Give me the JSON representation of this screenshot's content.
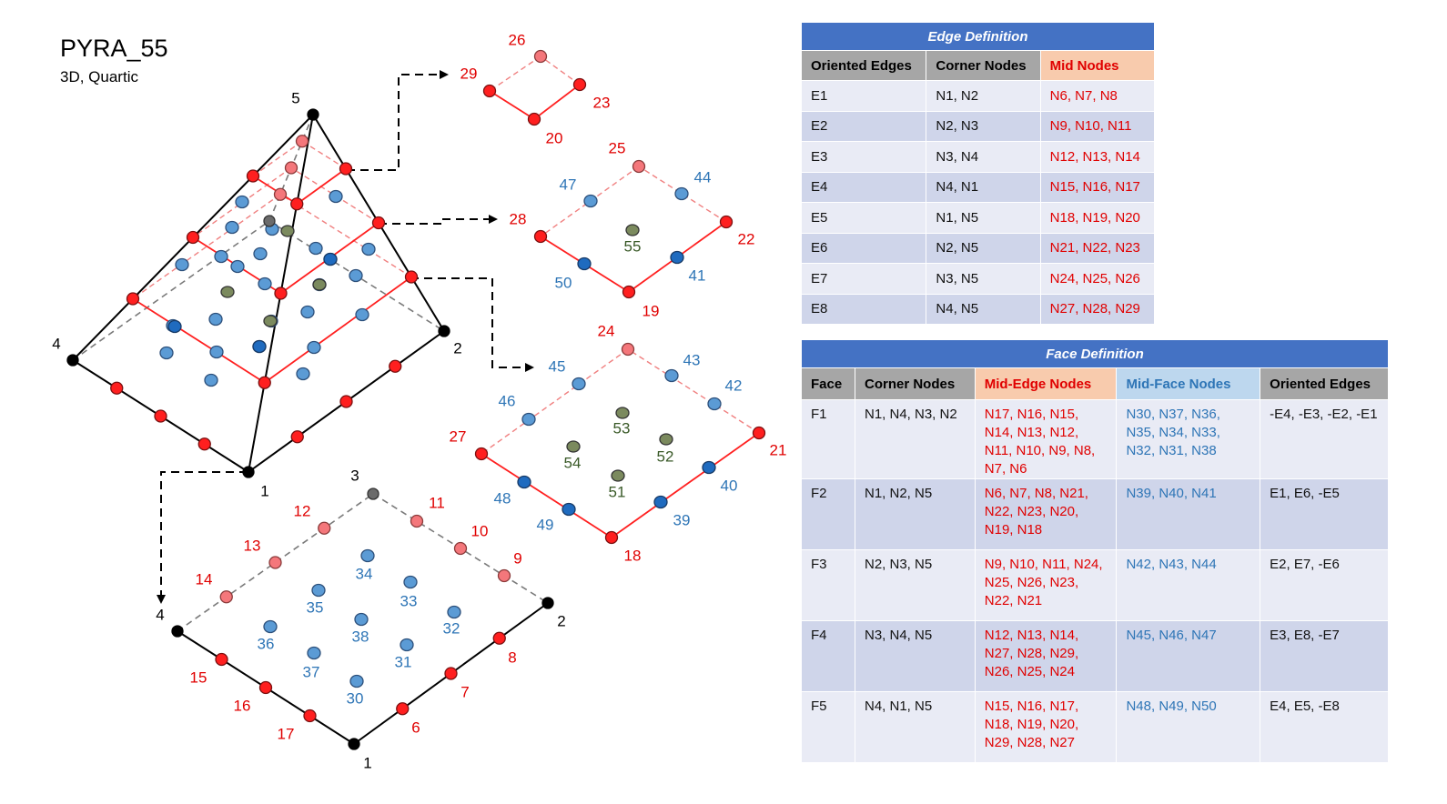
{
  "header": {
    "title": "PYRA_55",
    "subtitle": "3D, Quartic"
  },
  "colors": {
    "corner": "#000000",
    "mid_edge": "#ff1f1f",
    "mid_edge_hidden": "#f4777b",
    "face": "#5b9bd5",
    "face_front": "#1f6bbf",
    "interior": "#7b8a5e",
    "label_red": "#e00000",
    "label_blue": "#2e75b6",
    "label_green": "#3a5a28"
  },
  "diagram_labels": {
    "pyramid": [
      "5",
      "4",
      "2",
      "1"
    ],
    "top_quad": [
      "26",
      "29",
      "23",
      "20"
    ],
    "middle_quad": [
      "25",
      "47",
      "44",
      "28",
      "22",
      "55",
      "50",
      "41",
      "19"
    ],
    "lower_quad": [
      "24",
      "45",
      "43",
      "42",
      "46",
      "27",
      "21",
      "53",
      "52",
      "54",
      "51",
      "48",
      "40",
      "49",
      "39",
      "18"
    ],
    "base": [
      "3",
      "12",
      "11",
      "10",
      "13",
      "9",
      "14",
      "34",
      "33",
      "35",
      "32",
      "4",
      "2",
      "36",
      "38",
      "31",
      "37",
      "8",
      "15",
      "30",
      "7",
      "16",
      "6",
      "17",
      "1"
    ]
  },
  "edge_table": {
    "caption": "Edge Definition",
    "headers": [
      "Oriented Edges",
      "Corner Nodes",
      "Mid Nodes"
    ],
    "rows": [
      [
        "E1",
        "N1, N2",
        "N6, N7, N8"
      ],
      [
        "E2",
        "N2, N3",
        "N9, N10, N11"
      ],
      [
        "E3",
        "N3, N4",
        "N12, N13, N14"
      ],
      [
        "E4",
        "N4, N1",
        "N15, N16, N17"
      ],
      [
        "E5",
        "N1, N5",
        "N18, N19, N20"
      ],
      [
        "E6",
        "N2, N5",
        "N21, N22, N23"
      ],
      [
        "E7",
        "N3, N5",
        "N24, N25, N26"
      ],
      [
        "E8",
        "N4, N5",
        "N27, N28, N29"
      ]
    ]
  },
  "face_table": {
    "caption": "Face Definition",
    "headers": [
      "Face",
      "Corner Nodes",
      "Mid-Edge Nodes",
      "Mid-Face Nodes",
      "Oriented Edges"
    ],
    "rows": [
      [
        "F1",
        "N1, N4, N3, N2",
        "N17, N16, N15, N14, N13, N12, N11, N10, N9, N8, N7, N6",
        "N30, N37, N36, N35, N34, N33, N32, N31, N38",
        "-E4, -E3, -E2, -E1"
      ],
      [
        "F2",
        "N1, N2, N5",
        "N6, N7, N8, N21, N22, N23, N20, N19, N18",
        "N39, N40, N41",
        "E1, E6, -E5"
      ],
      [
        "F3",
        "N2, N3, N5",
        "N9, N10, N11, N24, N25, N26, N23, N22, N21",
        "N42, N43, N44",
        "E2, E7, -E6"
      ],
      [
        "F4",
        "N3, N4, N5",
        "N12, N13, N14, N27, N28, N29, N26, N25, N24",
        "N45, N46, N47",
        "E3, E8, -E7"
      ],
      [
        "F5",
        "N4, N1, N5",
        "N15, N16, N17, N18, N19, N20, N29, N28, N27",
        "N48, N49, N50",
        "E4, E5, -E8"
      ]
    ]
  }
}
